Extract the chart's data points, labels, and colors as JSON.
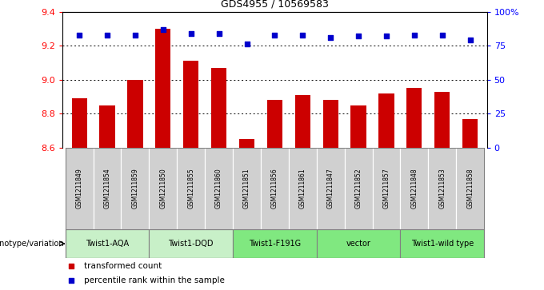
{
  "title": "GDS4955 / 10569583",
  "samples": [
    "GSM1211849",
    "GSM1211854",
    "GSM1211859",
    "GSM1211850",
    "GSM1211855",
    "GSM1211860",
    "GSM1211851",
    "GSM1211856",
    "GSM1211861",
    "GSM1211847",
    "GSM1211852",
    "GSM1211857",
    "GSM1211848",
    "GSM1211853",
    "GSM1211858"
  ],
  "red_values": [
    8.89,
    8.85,
    9.0,
    9.3,
    9.11,
    9.07,
    8.65,
    8.88,
    8.91,
    8.88,
    8.85,
    8.92,
    8.95,
    8.93,
    8.77
  ],
  "blue_values": [
    83,
    83,
    83,
    87,
    84,
    84,
    76,
    83,
    83,
    81,
    82,
    82,
    83,
    83,
    79
  ],
  "groups": [
    {
      "label": "Twist1-AQA",
      "start": 0,
      "end": 3
    },
    {
      "label": "Twist1-DQD",
      "start": 3,
      "end": 6
    },
    {
      "label": "Twist1-F191G",
      "start": 6,
      "end": 9
    },
    {
      "label": "vector",
      "start": 9,
      "end": 12
    },
    {
      "label": "Twist1-wild type",
      "start": 12,
      "end": 15
    }
  ],
  "group_colors": [
    "#c8f0c8",
    "#c8f0c8",
    "#80e880",
    "#80e880",
    "#80e880"
  ],
  "ylim_left": [
    8.6,
    9.4
  ],
  "ylim_right": [
    0,
    100
  ],
  "yticks_left": [
    8.6,
    8.8,
    9.0,
    9.2,
    9.4
  ],
  "yticks_right": [
    0,
    25,
    50,
    75,
    100
  ],
  "ytick_labels_right": [
    "0",
    "25",
    "50",
    "75",
    "100%"
  ],
  "grid_values": [
    8.8,
    9.0,
    9.2
  ],
  "bar_color": "#cc0000",
  "dot_color": "#0000cc",
  "sample_bg_color": "#d0d0d0",
  "group_label": "genotype/variation",
  "legend_red": "transformed count",
  "legend_blue": "percentile rank within the sample",
  "bar_width": 0.55
}
